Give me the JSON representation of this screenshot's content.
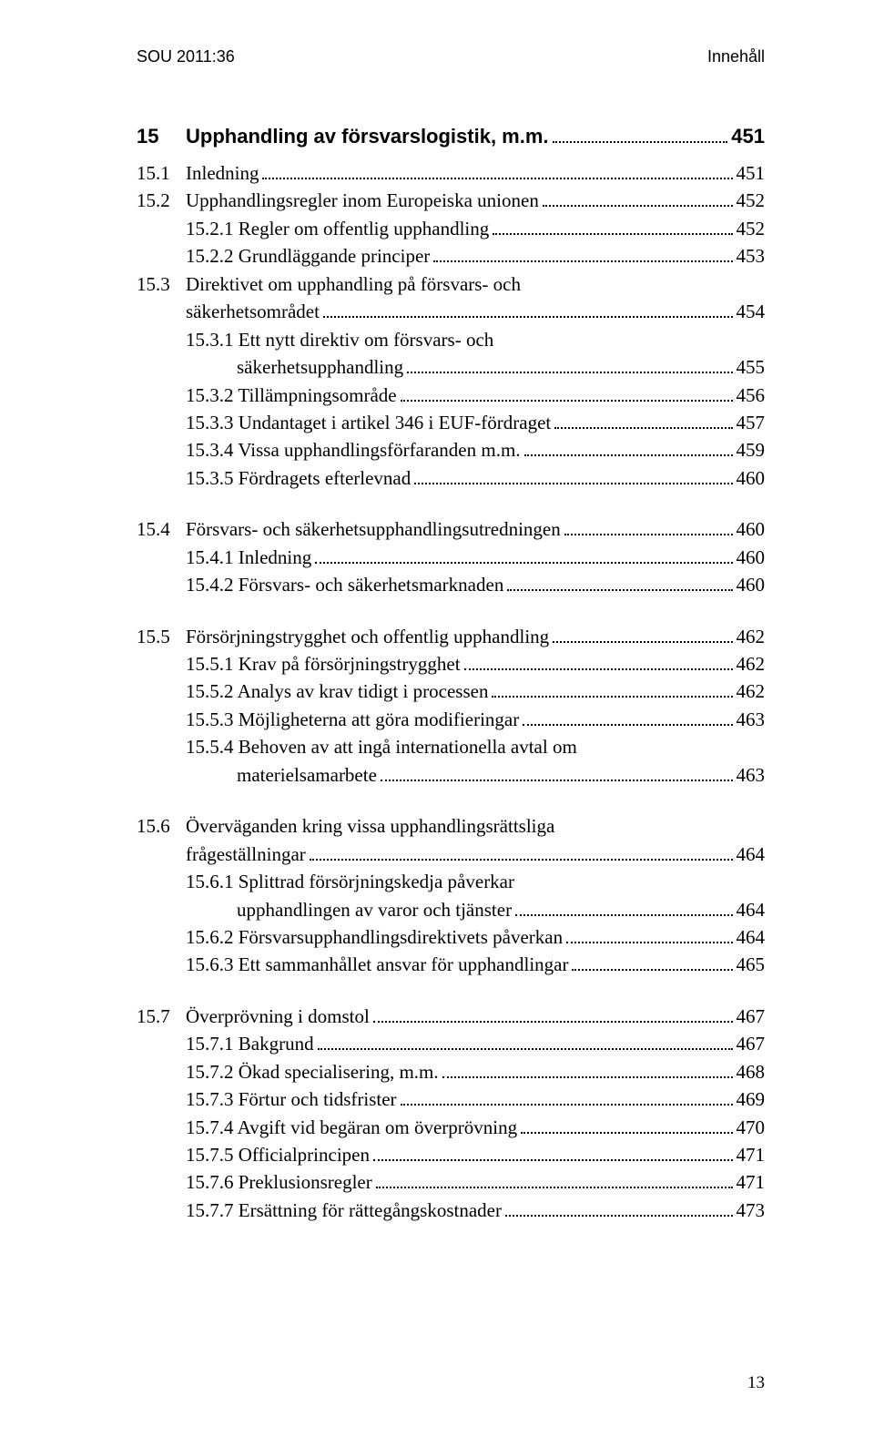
{
  "header": {
    "left": "SOU 2011:36",
    "right": "Innehåll"
  },
  "chapter": {
    "num": "15",
    "title": "Upphandling av försvarslogistik, m.m.",
    "page": "451"
  },
  "blocks": [
    {
      "lines": [
        {
          "level": 1,
          "num": "15.1",
          "text": "Inledning",
          "page": "451"
        },
        {
          "level": 1,
          "num": "15.2",
          "text": "Upphandlingsregler inom Europeiska unionen",
          "page": "452"
        },
        {
          "level": 2,
          "num": "15.2.1",
          "text": "Regler om offentlig upphandling",
          "page": "452"
        },
        {
          "level": 2,
          "num": "15.2.2",
          "text": "Grundläggande principer",
          "page": "453"
        },
        {
          "level": 1,
          "num": "15.3",
          "text": "Direktivet om upphandling på försvars- och",
          "cont": true
        },
        {
          "level": 1,
          "contline": true,
          "text": "säkerhetsområdet",
          "page": "454"
        },
        {
          "level": 2,
          "num": "15.3.1",
          "text": "Ett nytt direktiv om försvars- och",
          "cont": true
        },
        {
          "level": 2,
          "contline": true,
          "text": "säkerhetsupphandling",
          "page": "455"
        },
        {
          "level": 2,
          "num": "15.3.2",
          "text": "Tillämpningsområde",
          "page": "456"
        },
        {
          "level": 2,
          "num": "15.3.3",
          "text": "Undantaget i artikel 346 i EUF-fördraget",
          "page": "457"
        },
        {
          "level": 2,
          "num": "15.3.4",
          "text": "Vissa upphandlingsförfaranden m.m.",
          "page": "459"
        },
        {
          "level": 2,
          "num": "15.3.5",
          "text": "Fördragets efterlevnad",
          "page": "460"
        }
      ]
    },
    {
      "lines": [
        {
          "level": 1,
          "num": "15.4",
          "text": "Försvars- och säkerhetsupphandlingsutredningen",
          "page": "460"
        },
        {
          "level": 2,
          "num": "15.4.1",
          "text": "Inledning",
          "page": "460"
        },
        {
          "level": 2,
          "num": "15.4.2",
          "text": "Försvars- och säkerhetsmarknaden",
          "page": "460"
        }
      ]
    },
    {
      "lines": [
        {
          "level": 1,
          "num": "15.5",
          "text": "Försörjningstrygghet och offentlig upphandling",
          "page": "462"
        },
        {
          "level": 2,
          "num": "15.5.1",
          "text": "Krav på försörjningstrygghet",
          "page": "462"
        },
        {
          "level": 2,
          "num": "15.5.2",
          "text": "Analys av krav tidigt i processen",
          "page": "462"
        },
        {
          "level": 2,
          "num": "15.5.3",
          "text": "Möjligheterna att göra modifieringar",
          "page": "463"
        },
        {
          "level": 2,
          "num": "15.5.4",
          "text": "Behoven av att ingå internationella avtal om",
          "cont": true
        },
        {
          "level": 2,
          "contline": true,
          "text": "materielsamarbete",
          "page": "463"
        }
      ]
    },
    {
      "lines": [
        {
          "level": 1,
          "num": "15.6",
          "text": "Överväganden kring vissa upphandlingsrättsliga",
          "cont": true
        },
        {
          "level": 1,
          "contline": true,
          "text": "frågeställningar",
          "page": "464"
        },
        {
          "level": 2,
          "num": "15.6.1",
          "text": "Splittrad försörjningskedja påverkar",
          "cont": true
        },
        {
          "level": 2,
          "contline": true,
          "text": "upphandlingen av varor och tjänster",
          "page": "464"
        },
        {
          "level": 2,
          "num": "15.6.2",
          "text": "Försvarsupphandlingsdirektivets påverkan",
          "page": "464"
        },
        {
          "level": 2,
          "num": "15.6.3",
          "text": "Ett sammanhållet ansvar för upphandlingar",
          "page": "465"
        }
      ]
    },
    {
      "lines": [
        {
          "level": 1,
          "num": "15.7",
          "text": "Överprövning i domstol",
          "page": "467"
        },
        {
          "level": 2,
          "num": "15.7.1",
          "text": "Bakgrund",
          "page": "467"
        },
        {
          "level": 2,
          "num": "15.7.2",
          "text": "Ökad specialisering, m.m.",
          "page": "468"
        },
        {
          "level": 2,
          "num": "15.7.3",
          "text": "Förtur och tidsfrister",
          "page": "469"
        },
        {
          "level": 2,
          "num": "15.7.4",
          "text": "Avgift vid begäran om överprövning",
          "page": "470"
        },
        {
          "level": 2,
          "num": "15.7.5",
          "text": "Officialprincipen",
          "page": "471"
        },
        {
          "level": 2,
          "num": "15.7.6",
          "text": "Preklusionsregler",
          "page": "471"
        },
        {
          "level": 2,
          "num": "15.7.7",
          "text": "Ersättning för rättegångskostnader",
          "page": "473"
        }
      ]
    }
  ],
  "pageNumber": "13"
}
